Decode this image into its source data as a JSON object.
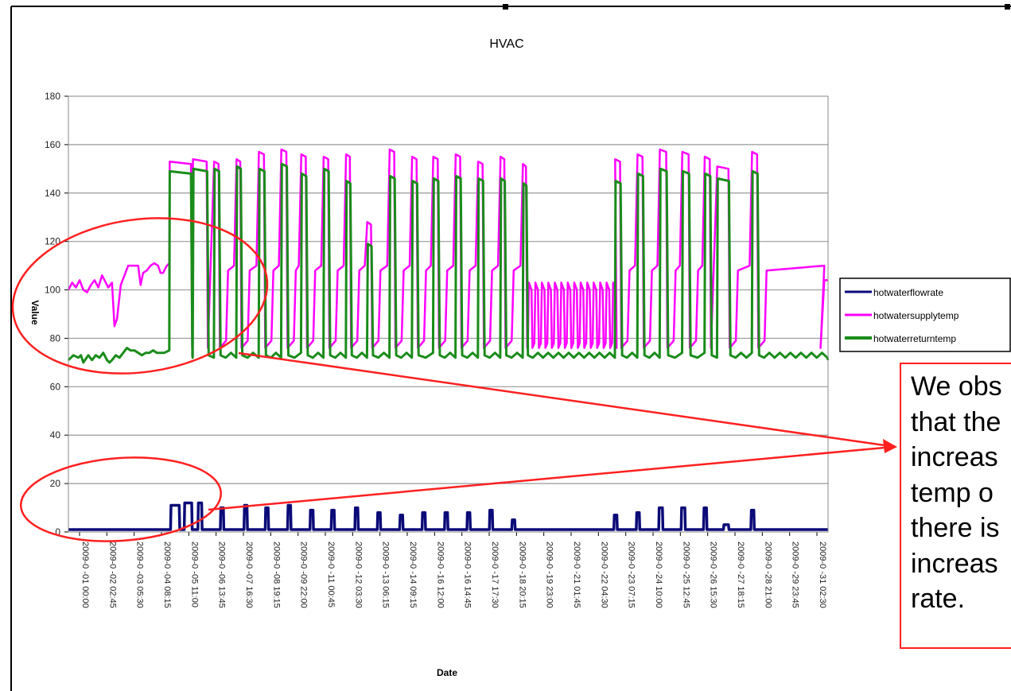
{
  "chart_data": {
    "type": "line",
    "title": "HVAC",
    "xlabel": "Date",
    "ylabel": "Value",
    "ylim": [
      0,
      180
    ],
    "yticks": [
      "0",
      "20",
      "40",
      "60",
      "80",
      "100",
      "120",
      "140",
      "160",
      "180"
    ],
    "ytick_values": [
      0,
      20,
      40,
      60,
      80,
      100,
      120,
      140,
      160,
      180
    ],
    "x_tick_labels": [
      "2009-0 -01 00:00",
      "2009-0 -02 02:45",
      "2009-0 -03 05:30",
      "2009-0 -04 08:15",
      "2009-0 -05 11:00",
      "2009-0 -06 13:45",
      "2009-0 -07 16:30",
      "2009-0 -08 19:15",
      "2009-0 -09 22:00",
      "2009-0 -11 00:45",
      "2009-0 -12 03:30",
      "2009-0 -13 06:15",
      "2009-0 -14 09:15",
      "2009-0 -16 12:00",
      "2009-0 -16 14:45",
      "2009-0 -17 17:30",
      "2009-0 -18 20:15",
      "2009-0 -19 23:00",
      "2009-0 -21 01:45",
      "2009-0 -22 04:30",
      "2009-0 -23 07:15",
      "2009-0 -24 10:00",
      "2009-0 -25 12:45",
      "2009-0 -26 15:30",
      "2009-0 -27 18:15",
      "2009-0 -28 21:00",
      "2009-0 -29 23:45",
      "2009-0 -31 02:30"
    ],
    "x_day_range": [
      1,
      31.5
    ],
    "grid": true,
    "legend_placement": "right",
    "series": [
      {
        "name": "hotwaterflowrate",
        "color": "#0a0a78",
        "baseline": 1,
        "pulses": [
          {
            "day": 5.1,
            "width": 0.35,
            "value": 11
          },
          {
            "day": 5.65,
            "width": 0.3,
            "value": 12
          },
          {
            "day": 6.2,
            "width": 0.15,
            "value": 12
          },
          {
            "day": 7.1,
            "width": 0.12,
            "value": 10
          },
          {
            "day": 8.05,
            "width": 0.12,
            "value": 11
          },
          {
            "day": 8.9,
            "width": 0.12,
            "value": 10
          },
          {
            "day": 9.8,
            "width": 0.12,
            "value": 11
          },
          {
            "day": 10.7,
            "width": 0.12,
            "value": 9
          },
          {
            "day": 11.55,
            "width": 0.12,
            "value": 9
          },
          {
            "day": 12.5,
            "width": 0.12,
            "value": 10
          },
          {
            "day": 13.4,
            "width": 0.12,
            "value": 8
          },
          {
            "day": 14.3,
            "width": 0.12,
            "value": 7
          },
          {
            "day": 15.2,
            "width": 0.12,
            "value": 8
          },
          {
            "day": 16.1,
            "width": 0.12,
            "value": 8
          },
          {
            "day": 17.0,
            "width": 0.12,
            "value": 8
          },
          {
            "day": 17.9,
            "width": 0.12,
            "value": 9
          },
          {
            "day": 18.8,
            "width": 0.12,
            "value": 5
          },
          {
            "day": 22.9,
            "width": 0.12,
            "value": 7
          },
          {
            "day": 23.8,
            "width": 0.12,
            "value": 8
          },
          {
            "day": 24.7,
            "width": 0.15,
            "value": 10
          },
          {
            "day": 25.6,
            "width": 0.15,
            "value": 10
          },
          {
            "day": 26.5,
            "width": 0.12,
            "value": 10
          },
          {
            "day": 27.3,
            "width": 0.2,
            "value": 3
          },
          {
            "day": 28.4,
            "width": 0.12,
            "value": 9
          }
        ]
      },
      {
        "name": "hotwatersupplytemp",
        "color": "#ff00ff",
        "early_points": [
          [
            1.0,
            100
          ],
          [
            1.15,
            103
          ],
          [
            1.3,
            101
          ],
          [
            1.45,
            104
          ],
          [
            1.6,
            100
          ],
          [
            1.75,
            99
          ],
          [
            1.9,
            102
          ],
          [
            2.05,
            104
          ],
          [
            2.2,
            101
          ],
          [
            2.35,
            106
          ],
          [
            2.5,
            103
          ],
          [
            2.6,
            101
          ],
          [
            2.75,
            103
          ],
          [
            2.85,
            85
          ],
          [
            2.95,
            88
          ],
          [
            3.1,
            102
          ],
          [
            3.25,
            106
          ],
          [
            3.4,
            110
          ],
          [
            3.55,
            110
          ],
          [
            3.7,
            110
          ],
          [
            3.8,
            110
          ],
          [
            3.9,
            102
          ],
          [
            4.0,
            107
          ],
          [
            4.15,
            108
          ],
          [
            4.3,
            110
          ],
          [
            4.45,
            111
          ],
          [
            4.6,
            110
          ],
          [
            4.7,
            107
          ],
          [
            4.8,
            107
          ],
          [
            4.95,
            110
          ],
          [
            5.05,
            111
          ]
        ],
        "cycles": [
          {
            "day": 5.05,
            "dur": 0.85,
            "peak": 153
          },
          {
            "day": 6.0,
            "dur": 0.55,
            "peak": 154
          },
          {
            "day": 6.85,
            "dur": 0.18,
            "peak": 153
          },
          {
            "day": 7.75,
            "dur": 0.15,
            "peak": 154
          },
          {
            "day": 8.65,
            "dur": 0.2,
            "peak": 157
          },
          {
            "day": 9.55,
            "dur": 0.2,
            "peak": 158
          },
          {
            "day": 10.35,
            "dur": 0.18,
            "peak": 156
          },
          {
            "day": 11.25,
            "dur": 0.18,
            "peak": 155
          },
          {
            "day": 12.15,
            "dur": 0.15,
            "peak": 156
          },
          {
            "day": 13.0,
            "dur": 0.15,
            "peak": 128
          },
          {
            "day": 13.9,
            "dur": 0.18,
            "peak": 158
          },
          {
            "day": 14.8,
            "dur": 0.18,
            "peak": 155
          },
          {
            "day": 15.65,
            "dur": 0.18,
            "peak": 155
          },
          {
            "day": 16.55,
            "dur": 0.18,
            "peak": 156
          },
          {
            "day": 17.45,
            "dur": 0.18,
            "peak": 153
          },
          {
            "day": 18.35,
            "dur": 0.15,
            "peak": 155
          },
          {
            "day": 19.25,
            "dur": 0.12,
            "peak": 152
          },
          {
            "day": 22.95,
            "dur": 0.2,
            "peak": 154
          },
          {
            "day": 23.85,
            "dur": 0.2,
            "peak": 156
          },
          {
            "day": 24.75,
            "dur": 0.25,
            "peak": 158
          },
          {
            "day": 25.65,
            "dur": 0.25,
            "peak": 157
          },
          {
            "day": 26.55,
            "dur": 0.2,
            "peak": 155
          },
          {
            "day": 27.05,
            "dur": 0.45,
            "peak": 151
          },
          {
            "day": 28.45,
            "dur": 0.2,
            "peak": 157
          }
        ],
        "oscillation": {
          "start": 19.45,
          "end": 22.85,
          "period": 0.26,
          "high": 103,
          "low": 76
        }
      },
      {
        "name": "hotwaterreturntemp",
        "color": "#1a8c1a",
        "early_points": [
          [
            1.0,
            71
          ],
          [
            1.2,
            73
          ],
          [
            1.4,
            72
          ],
          [
            1.5,
            73
          ],
          [
            1.6,
            70
          ],
          [
            1.8,
            73
          ],
          [
            1.95,
            71
          ],
          [
            2.1,
            73
          ],
          [
            2.25,
            72
          ],
          [
            2.4,
            74
          ],
          [
            2.55,
            71
          ],
          [
            2.65,
            70
          ],
          [
            2.75,
            71
          ],
          [
            2.9,
            73
          ],
          [
            3.05,
            72
          ],
          [
            3.2,
            74
          ],
          [
            3.35,
            76
          ],
          [
            3.5,
            75
          ],
          [
            3.65,
            75
          ],
          [
            3.8,
            74
          ],
          [
            3.95,
            73
          ],
          [
            4.1,
            74
          ],
          [
            4.25,
            74
          ],
          [
            4.4,
            75
          ],
          [
            4.55,
            74
          ],
          [
            4.7,
            74
          ],
          [
            4.85,
            74
          ],
          [
            5.05,
            75
          ]
        ],
        "cycles": [
          {
            "day": 5.05,
            "dur": 0.85,
            "peak": 149
          },
          {
            "day": 6.0,
            "dur": 0.55,
            "peak": 150
          },
          {
            "day": 6.85,
            "dur": 0.18,
            "peak": 150
          },
          {
            "day": 7.75,
            "dur": 0.15,
            "peak": 151
          },
          {
            "day": 8.65,
            "dur": 0.2,
            "peak": 150
          },
          {
            "day": 9.55,
            "dur": 0.2,
            "peak": 152
          },
          {
            "day": 10.35,
            "dur": 0.18,
            "peak": 148
          },
          {
            "day": 11.25,
            "dur": 0.18,
            "peak": 150
          },
          {
            "day": 12.15,
            "dur": 0.15,
            "peak": 145
          },
          {
            "day": 13.0,
            "dur": 0.15,
            "peak": 119
          },
          {
            "day": 13.9,
            "dur": 0.18,
            "peak": 147
          },
          {
            "day": 14.8,
            "dur": 0.18,
            "peak": 145
          },
          {
            "day": 15.65,
            "dur": 0.18,
            "peak": 146
          },
          {
            "day": 16.55,
            "dur": 0.18,
            "peak": 147
          },
          {
            "day": 17.45,
            "dur": 0.18,
            "peak": 146
          },
          {
            "day": 18.35,
            "dur": 0.15,
            "peak": 146
          },
          {
            "day": 19.25,
            "dur": 0.12,
            "peak": 144
          },
          {
            "day": 22.95,
            "dur": 0.2,
            "peak": 145
          },
          {
            "day": 23.85,
            "dur": 0.2,
            "peak": 148
          },
          {
            "day": 24.75,
            "dur": 0.25,
            "peak": 150
          },
          {
            "day": 25.65,
            "dur": 0.25,
            "peak": 149
          },
          {
            "day": 26.55,
            "dur": 0.2,
            "peak": 148
          },
          {
            "day": 27.05,
            "dur": 0.45,
            "peak": 146
          },
          {
            "day": 28.45,
            "dur": 0.2,
            "peak": 149
          }
        ],
        "low": 71
      }
    ]
  },
  "legend": {
    "labels": [
      "hotwaterflowrate",
      "hotwatersupplytemp",
      "hotwaterreturntemp"
    ]
  },
  "annotation": {
    "lines": [
      "We obs",
      "that the",
      "increas",
      "temp o",
      "there is",
      "increas",
      "rate."
    ]
  },
  "colors": {
    "annotation_red": "#ff2020",
    "grid": "#9a9a9a"
  }
}
